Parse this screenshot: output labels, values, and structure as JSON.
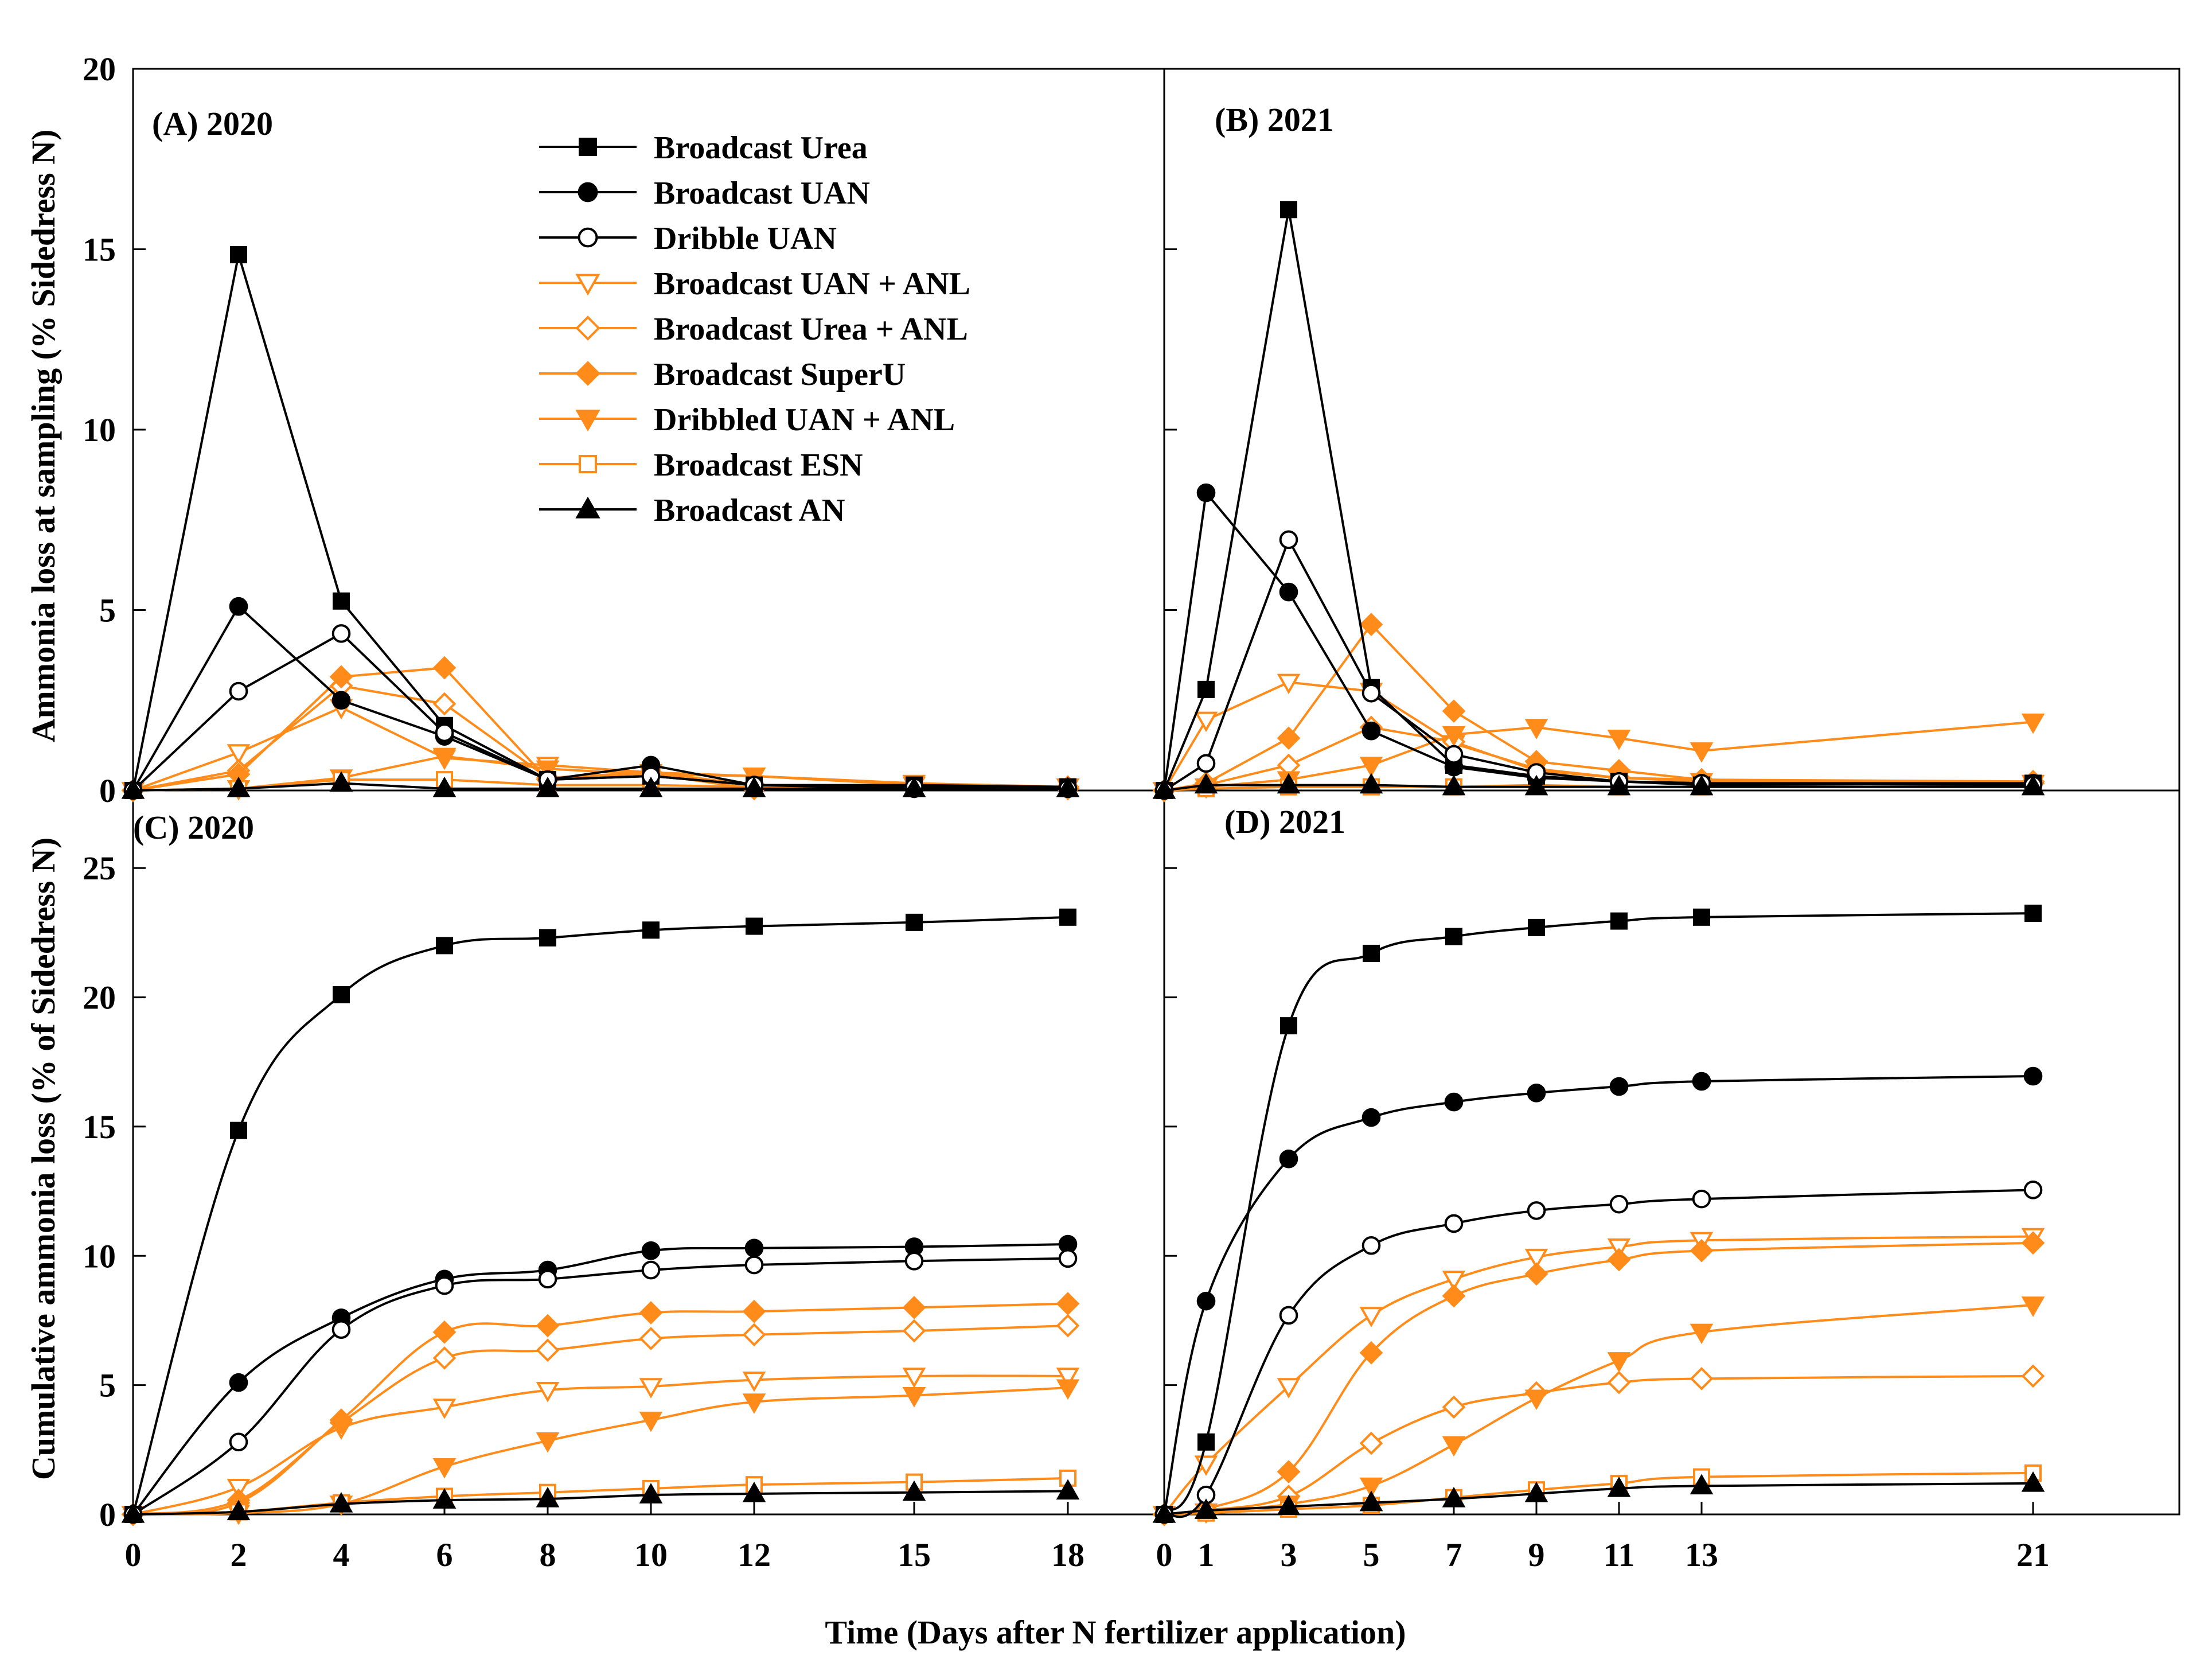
{
  "colors": {
    "black": "#000000",
    "orange": "#FF8C1A",
    "white": "#ffffff"
  },
  "axes": {
    "xlabel": "Time (Days after N fertilizer application)",
    "ylabel_top": "Ammonia loss at sampling (% Sidedress N)",
    "ylabel_bottom": "Cumulative ammonia loss (% of Sidedress N)"
  },
  "series_meta": [
    {
      "name": "Broadcast Urea",
      "color": "#000000",
      "marker": "square",
      "filled": true
    },
    {
      "name": "Broadcast UAN",
      "color": "#000000",
      "marker": "circle",
      "filled": true
    },
    {
      "name": "Dribble UAN",
      "color": "#000000",
      "marker": "circle",
      "filled": false
    },
    {
      "name": "Broadcast UAN + ANL",
      "color": "#FF8C1A",
      "marker": "triangle-down",
      "filled": false
    },
    {
      "name": "Broadcast Urea + ANL",
      "color": "#FF8C1A",
      "marker": "diamond",
      "filled": false
    },
    {
      "name": "Broadcast SuperU",
      "color": "#FF8C1A",
      "marker": "diamond",
      "filled": true
    },
    {
      "name": "Dribbled UAN + ANL",
      "color": "#FF8C1A",
      "marker": "triangle-down",
      "filled": true
    },
    {
      "name": "Broadcast ESN",
      "color": "#FF8C1A",
      "marker": "square",
      "filled": false
    },
    {
      "name": "Broadcast AN",
      "color": "#000000",
      "marker": "triangle-up",
      "filled": true
    }
  ],
  "chart_data": [
    {
      "panel": "A",
      "title": "(A) 2020",
      "type": "line",
      "x": [
        0,
        2,
        4,
        6,
        8,
        10,
        12,
        15,
        18
      ],
      "xticks": [
        "0",
        "2",
        "4",
        "6",
        "8",
        "10",
        "12",
        "15",
        "18"
      ],
      "ylim": [
        0,
        20
      ],
      "yticks": [
        "0",
        "5",
        "10",
        "15",
        "20"
      ],
      "series": [
        {
          "name": "Broadcast Urea",
          "values": [
            0,
            14.85,
            5.25,
            1.8,
            0.3,
            0.4,
            0.15,
            0.15,
            0.1
          ]
        },
        {
          "name": "Broadcast UAN",
          "values": [
            0,
            5.1,
            2.5,
            1.5,
            0.3,
            0.7,
            0.15,
            0.05,
            0.05
          ]
        },
        {
          "name": "Dribble UAN",
          "values": [
            0,
            2.75,
            4.35,
            1.6,
            0.3,
            0.4,
            0.15,
            0.1,
            0.05
          ]
        },
        {
          "name": "Broadcast UAN + ANL",
          "values": [
            0,
            1.05,
            2.3,
            0.9,
            0.7,
            0.5,
            0.4,
            0.2,
            0.1
          ]
        },
        {
          "name": "Broadcast Urea + ANL",
          "values": [
            0,
            0.55,
            2.9,
            2.4,
            0.35,
            0.5,
            0.15,
            0.1,
            0.1
          ]
        },
        {
          "name": "Broadcast SuperU",
          "values": [
            0,
            0.45,
            3.15,
            3.4,
            0.3,
            0.45,
            0.05,
            0.1,
            0.05
          ]
        },
        {
          "name": "Dribbled UAN + ANL",
          "values": [
            0,
            0.05,
            0.35,
            0.95,
            0.6,
            0.45,
            0.4,
            0.15,
            0.1
          ]
        },
        {
          "name": "Broadcast ESN",
          "values": [
            0,
            0.05,
            0.3,
            0.3,
            0.15,
            0.15,
            0.1,
            0.1,
            0.1
          ]
        },
        {
          "name": "Broadcast AN",
          "values": [
            0,
            0.05,
            0.2,
            0.05,
            0.05,
            0.05,
            0.05,
            0.05,
            0.05
          ]
        }
      ]
    },
    {
      "panel": "B",
      "title": "(B) 2021",
      "type": "line",
      "x": [
        0,
        1,
        3,
        5,
        7,
        9,
        11,
        13,
        21
      ],
      "xticks": [
        "0",
        "1",
        "3",
        "5",
        "7",
        "9",
        "11",
        "13",
        "21"
      ],
      "ylim": [
        0,
        20
      ],
      "yticks": [
        "0",
        "5",
        "10",
        "15",
        "20"
      ],
      "series": [
        {
          "name": "Broadcast Urea",
          "values": [
            0,
            2.8,
            16.1,
            2.85,
            0.7,
            0.4,
            0.25,
            0.15,
            0.2
          ]
        },
        {
          "name": "Broadcast UAN",
          "values": [
            0,
            8.25,
            5.5,
            1.65,
            0.65,
            0.35,
            0.25,
            0.2,
            0.2
          ]
        },
        {
          "name": "Dribble UAN",
          "values": [
            0,
            0.75,
            6.95,
            2.7,
            1.0,
            0.5,
            0.25,
            0.2,
            0.15
          ]
        },
        {
          "name": "Broadcast UAN + ANL",
          "values": [
            0,
            1.95,
            3.0,
            2.75,
            1.3,
            0.6,
            0.35,
            0.25,
            0.2
          ]
        },
        {
          "name": "Broadcast Urea + ANL",
          "values": [
            0,
            0.15,
            0.7,
            1.75,
            1.35,
            0.55,
            0.35,
            0.3,
            0.2
          ]
        },
        {
          "name": "Broadcast SuperU",
          "values": [
            0,
            0.2,
            1.45,
            4.6,
            2.2,
            0.8,
            0.55,
            0.3,
            0.25
          ]
        },
        {
          "name": "Dribbled UAN + ANL",
          "values": [
            0,
            0.1,
            0.3,
            0.7,
            1.55,
            1.75,
            1.45,
            1.1,
            1.9
          ]
        },
        {
          "name": "Broadcast ESN",
          "values": [
            0,
            0.05,
            0.1,
            0.1,
            0.1,
            0.15,
            0.1,
            0.1,
            0.15
          ]
        },
        {
          "name": "Broadcast AN",
          "values": [
            0,
            0.15,
            0.15,
            0.15,
            0.1,
            0.1,
            0.1,
            0.1,
            0.1
          ]
        }
      ]
    },
    {
      "panel": "C",
      "title": "(C) 2020",
      "type": "line",
      "x": [
        0,
        2,
        4,
        6,
        8,
        10,
        12,
        15,
        18
      ],
      "xticks": [
        "0",
        "2",
        "4",
        "6",
        "8",
        "10",
        "12",
        "15",
        "18"
      ],
      "ylim": [
        0,
        28
      ],
      "yticks": [
        "0",
        "5",
        "10",
        "15",
        "20",
        "25"
      ],
      "series": [
        {
          "name": "Broadcast Urea",
          "values": [
            0,
            14.85,
            20.1,
            22.0,
            22.3,
            22.6,
            22.75,
            22.9,
            23.1
          ]
        },
        {
          "name": "Broadcast UAN",
          "values": [
            0,
            5.1,
            7.6,
            9.1,
            9.45,
            10.2,
            10.3,
            10.35,
            10.45
          ]
        },
        {
          "name": "Dribble UAN",
          "values": [
            0,
            2.8,
            7.15,
            8.85,
            9.1,
            9.45,
            9.65,
            9.8,
            9.9
          ]
        },
        {
          "name": "Broadcast UAN + ANL",
          "values": [
            0,
            1.05,
            3.35,
            4.15,
            4.8,
            4.95,
            5.2,
            5.35,
            5.35
          ]
        },
        {
          "name": "Broadcast Urea + ANL",
          "values": [
            0,
            0.55,
            3.55,
            6.05,
            6.35,
            6.8,
            6.95,
            7.1,
            7.3
          ]
        },
        {
          "name": "Broadcast SuperU",
          "values": [
            0,
            0.45,
            3.65,
            7.05,
            7.3,
            7.8,
            7.85,
            8.0,
            8.15
          ]
        },
        {
          "name": "Dribbled UAN + ANL",
          "values": [
            0,
            0.05,
            0.4,
            1.85,
            2.85,
            3.65,
            4.35,
            4.6,
            4.9
          ]
        },
        {
          "name": "Broadcast ESN",
          "values": [
            0,
            0.1,
            0.45,
            0.7,
            0.85,
            1.0,
            1.15,
            1.25,
            1.4
          ]
        },
        {
          "name": "Broadcast AN",
          "values": [
            0,
            0.1,
            0.4,
            0.55,
            0.6,
            0.75,
            0.8,
            0.85,
            0.9
          ]
        }
      ]
    },
    {
      "panel": "D",
      "title": "(D) 2021",
      "type": "line",
      "x": [
        0,
        1,
        3,
        5,
        7,
        9,
        11,
        13,
        21
      ],
      "xticks": [
        "0",
        "1",
        "3",
        "5",
        "7",
        "9",
        "11",
        "13",
        "21"
      ],
      "ylim": [
        0,
        28
      ],
      "yticks": [
        "0",
        "5",
        "10",
        "15",
        "20",
        "25"
      ],
      "series": [
        {
          "name": "Broadcast Urea",
          "values": [
            0,
            2.8,
            18.9,
            21.7,
            22.35,
            22.7,
            22.95,
            23.1,
            23.25
          ]
        },
        {
          "name": "Broadcast UAN",
          "values": [
            0,
            8.25,
            13.75,
            15.35,
            15.95,
            16.3,
            16.55,
            16.75,
            16.95
          ]
        },
        {
          "name": "Dribble UAN",
          "values": [
            0,
            0.75,
            7.7,
            10.4,
            11.25,
            11.75,
            12.0,
            12.2,
            12.55
          ]
        },
        {
          "name": "Broadcast UAN + ANL",
          "values": [
            0,
            1.95,
            4.95,
            7.7,
            9.1,
            9.95,
            10.35,
            10.6,
            10.75
          ]
        },
        {
          "name": "Broadcast Urea + ANL",
          "values": [
            0,
            0.15,
            0.7,
            2.75,
            4.15,
            4.7,
            5.1,
            5.25,
            5.35
          ]
        },
        {
          "name": "Broadcast SuperU",
          "values": [
            0,
            0.2,
            1.65,
            6.25,
            8.45,
            9.3,
            9.85,
            10.2,
            10.5
          ]
        },
        {
          "name": "Dribbled UAN + ANL",
          "values": [
            0,
            0.1,
            0.4,
            1.1,
            2.7,
            4.5,
            5.95,
            7.05,
            8.1
          ]
        },
        {
          "name": "Broadcast ESN",
          "values": [
            0,
            0.05,
            0.2,
            0.35,
            0.65,
            0.95,
            1.2,
            1.45,
            1.6
          ]
        },
        {
          "name": "Broadcast AN",
          "values": [
            0,
            0.15,
            0.3,
            0.45,
            0.6,
            0.8,
            1.0,
            1.1,
            1.2
          ]
        }
      ]
    }
  ]
}
